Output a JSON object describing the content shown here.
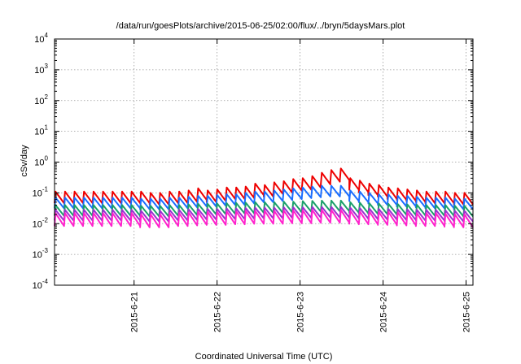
{
  "chart_data": {
    "type": "line",
    "title": "/data/run/goesPlots/archive/2015-06-25/02:00/flux/../bryn/5daysMars.plot",
    "xlabel": "Coordinated Universal Time (UTC)",
    "ylabel": "cSv/day",
    "yscale": "log",
    "ylim": [
      0.0001,
      10000
    ],
    "xlim": [
      "2015-06-20 01:00",
      "2015-06-25 02:00"
    ],
    "grid": true,
    "legend": "none",
    "y_ticks": [
      {
        "base": "10",
        "exp": "4"
      },
      {
        "base": "10",
        "exp": "3"
      },
      {
        "base": "10",
        "exp": "2"
      },
      {
        "base": "10",
        "exp": "1"
      },
      {
        "base": "10",
        "exp": "0"
      },
      {
        "base": "10",
        "exp": "-1"
      },
      {
        "base": "10",
        "exp": "-2"
      },
      {
        "base": "10",
        "exp": "-3"
      },
      {
        "base": "10",
        "exp": "-4"
      }
    ],
    "x_ticks": [
      "2015-6-21",
      "2015-6-22",
      "2015-6-23",
      "2015-6-24",
      "2015-6-25"
    ],
    "cycle_hours": 2.75,
    "series": [
      {
        "color": "#ee0000",
        "peaks": [
          0.11,
          0.11,
          0.11,
          0.11,
          0.11,
          0.11,
          0.11,
          0.11,
          0.11,
          0.11,
          0.1,
          0.1,
          0.11,
          0.11,
          0.12,
          0.14,
          0.12,
          0.13,
          0.15,
          0.15,
          0.16,
          0.2,
          0.18,
          0.22,
          0.24,
          0.28,
          0.3,
          0.35,
          0.45,
          0.55,
          0.62,
          0.3,
          0.25,
          0.2,
          0.18,
          0.15,
          0.14,
          0.13,
          0.12,
          0.11,
          0.11,
          0.11,
          0.1,
          0.1
        ],
        "ratio": 0.42
      },
      {
        "color": "#1a6dff",
        "peaks": [
          0.07,
          0.07,
          0.07,
          0.07,
          0.07,
          0.07,
          0.07,
          0.07,
          0.07,
          0.065,
          0.065,
          0.065,
          0.07,
          0.07,
          0.075,
          0.08,
          0.08,
          0.085,
          0.09,
          0.09,
          0.1,
          0.11,
          0.11,
          0.12,
          0.13,
          0.14,
          0.15,
          0.16,
          0.17,
          0.17,
          0.17,
          0.12,
          0.11,
          0.1,
          0.09,
          0.09,
          0.08,
          0.08,
          0.075,
          0.07,
          0.07,
          0.07,
          0.065,
          0.065
        ],
        "ratio": 0.45
      },
      {
        "color": "#1aa06a",
        "peaks": [
          0.04,
          0.04,
          0.04,
          0.04,
          0.04,
          0.04,
          0.04,
          0.04,
          0.04,
          0.038,
          0.038,
          0.038,
          0.04,
          0.04,
          0.042,
          0.044,
          0.044,
          0.045,
          0.046,
          0.047,
          0.048,
          0.05,
          0.05,
          0.05,
          0.052,
          0.052,
          0.054,
          0.055,
          0.056,
          0.056,
          0.056,
          0.05,
          0.048,
          0.046,
          0.045,
          0.044,
          0.043,
          0.042,
          0.041,
          0.04,
          0.04,
          0.04,
          0.038,
          0.038
        ],
        "ratio": 0.45
      },
      {
        "color": "#9b30d0",
        "peaks": [
          0.028,
          0.028,
          0.028,
          0.028,
          0.028,
          0.028,
          0.028,
          0.028,
          0.028,
          0.026,
          0.026,
          0.026,
          0.028,
          0.028,
          0.029,
          0.03,
          0.03,
          0.03,
          0.031,
          0.031,
          0.032,
          0.033,
          0.033,
          0.033,
          0.034,
          0.034,
          0.034,
          0.035,
          0.035,
          0.035,
          0.035,
          0.033,
          0.032,
          0.031,
          0.03,
          0.03,
          0.029,
          0.029,
          0.028,
          0.028,
          0.028,
          0.027,
          0.026,
          0.026
        ],
        "ratio": 0.45
      },
      {
        "color": "#ff22cc",
        "peaks": [
          0.022,
          0.022,
          0.022,
          0.022,
          0.022,
          0.022,
          0.022,
          0.022,
          0.022,
          0.02,
          0.02,
          0.02,
          0.022,
          0.022,
          0.023,
          0.024,
          0.024,
          0.024,
          0.025,
          0.025,
          0.026,
          0.026,
          0.026,
          0.026,
          0.027,
          0.027,
          0.027,
          0.028,
          0.028,
          0.028,
          0.028,
          0.026,
          0.025,
          0.025,
          0.024,
          0.024,
          0.023,
          0.023,
          0.022,
          0.022,
          0.022,
          0.021,
          0.02,
          0.02
        ],
        "ratio": 0.38
      }
    ]
  }
}
